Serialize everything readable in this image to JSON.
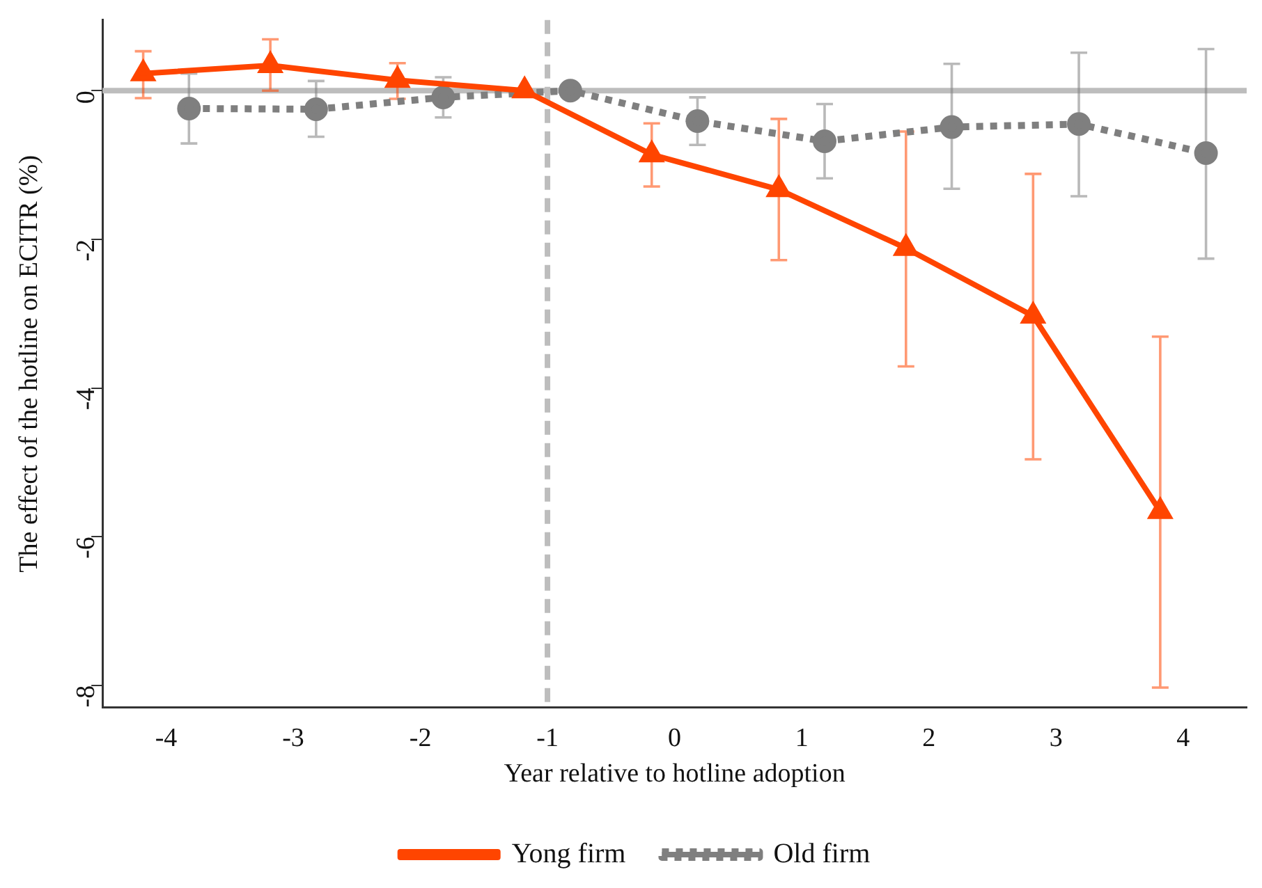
{
  "chart_data": {
    "type": "line",
    "xlabel": "Year relative to hotline adoption",
    "ylabel": "The effect of the hotline on ECITR (%)",
    "xlim": [
      -4.5,
      4.5
    ],
    "xticks": [
      -4,
      -3,
      -2,
      -1,
      0,
      1,
      2,
      3,
      4
    ],
    "ylim": [
      -8.3,
      0.95
    ],
    "yticks": [
      -8,
      -6,
      -4,
      -2,
      0
    ],
    "grid": false,
    "legend": "bottom",
    "ref_lines": [
      {
        "axis": "y",
        "value": 0,
        "color": "#bdbdbd",
        "line_style": "solid"
      },
      {
        "axis": "x",
        "value": -1,
        "color": "#bdbdbd",
        "line_style": "dashed"
      }
    ],
    "series": [
      {
        "name": "Yong firm",
        "color": "#ff4500",
        "marker": "triangle",
        "line_style": "solid",
        "x": [
          -4.18,
          -3.18,
          -2.18,
          -1.18,
          -0.18,
          0.82,
          1.82,
          2.82,
          3.82
        ],
        "values": [
          0.23,
          0.34,
          0.14,
          0,
          -0.86,
          -1.33,
          -2.12,
          -3.03,
          -5.66
        ],
        "errors": [
          [
            -0.1,
            0.53
          ],
          [
            0,
            0.69
          ],
          [
            -0.11,
            0.37
          ],
          null,
          [
            -1.29,
            -0.44
          ],
          [
            -2.28,
            -0.38
          ],
          [
            -3.71,
            -0.55
          ],
          [
            -4.96,
            -1.12
          ],
          [
            -8.03,
            -3.31
          ]
        ]
      },
      {
        "name": "Old firm",
        "color": "#7f7f7f",
        "marker": "circle",
        "line_style": "dotted",
        "x": [
          -3.82,
          -2.82,
          -1.82,
          -0.82,
          0.18,
          1.18,
          2.18,
          3.18,
          4.18
        ],
        "values": [
          -0.24,
          -0.25,
          -0.09,
          0,
          -0.41,
          -0.68,
          -0.49,
          -0.45,
          -0.84
        ],
        "errors": [
          [
            -0.71,
            0.23
          ],
          [
            -0.62,
            0.13
          ],
          [
            -0.36,
            0.18
          ],
          null,
          [
            -0.73,
            -0.09
          ],
          [
            -1.18,
            -0.18
          ],
          [
            -1.32,
            0.36
          ],
          [
            -1.42,
            0.51
          ],
          [
            -2.26,
            0.56
          ]
        ]
      }
    ]
  }
}
